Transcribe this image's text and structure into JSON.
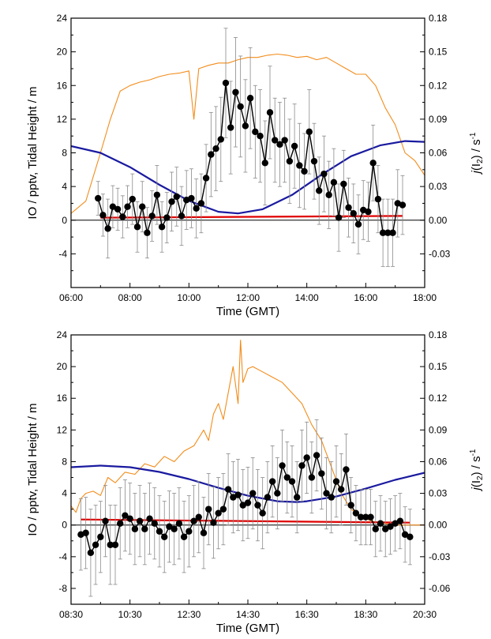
{
  "chart_data": [
    {
      "type": "line",
      "xlabel": "Time (GMT)",
      "ylabel": "IO / pptv, Tidal Height / m",
      "y2label": "j(I2) / s-1",
      "y2label_parts": {
        "italic": "j",
        "open": "(I",
        "sub": "2",
        "close": ") / s",
        "sup": "-1"
      },
      "xlim": [
        "06:00",
        "18:00"
      ],
      "ylim": [
        -8,
        24
      ],
      "y2lim": [
        -0.06,
        0.18
      ],
      "x_ticks": [
        "06:00",
        "08:00",
        "10:00",
        "12:00",
        "14:00",
        "16:00",
        "18:00"
      ],
      "y_ticks": [
        "-4",
        "0",
        "4",
        "8",
        "12",
        "16",
        "20",
        "24"
      ],
      "y2_ticks": [
        "-0.03",
        "0.00",
        "0.03",
        "0.06",
        "0.09",
        "0.12",
        "0.15",
        "0.18"
      ],
      "colors": {
        "io": "#000000",
        "tide": "#1a1aa0",
        "j": "#f28c1a",
        "io_detection": "#e00000",
        "zero": "#000000"
      },
      "series": [
        {
          "key": "io",
          "axis": "left",
          "style": "markers+line+errorbars",
          "x": [
            "06:55",
            "07:05",
            "07:15",
            "07:25",
            "07:35",
            "07:45",
            "07:55",
            "08:05",
            "08:15",
            "08:25",
            "08:35",
            "08:45",
            "08:55",
            "09:05",
            "09:15",
            "09:25",
            "09:35",
            "09:45",
            "09:55",
            "10:05",
            "10:15",
            "10:25",
            "10:35",
            "10:45",
            "10:55",
            "11:05",
            "11:15",
            "11:25",
            "11:35",
            "11:45",
            "11:55",
            "12:05",
            "12:15",
            "12:25",
            "12:35",
            "12:45",
            "12:55",
            "13:05",
            "13:15",
            "13:25",
            "13:35",
            "13:45",
            "13:55",
            "14:05",
            "14:15",
            "14:25",
            "14:35",
            "14:45",
            "14:55",
            "15:05",
            "15:15",
            "15:25",
            "15:35",
            "15:45",
            "15:55",
            "16:05",
            "16:15",
            "16:25",
            "16:35",
            "16:45",
            "16:55",
            "17:05",
            "17:15"
          ],
          "y": [
            2.6,
            0.6,
            -1.0,
            1.6,
            1.3,
            0.4,
            1.6,
            2.5,
            -0.8,
            1.6,
            -1.5,
            0.5,
            3.0,
            -0.8,
            0.3,
            2.2,
            2.8,
            0.5,
            2.4,
            2.6,
            1.4,
            2.0,
            5.0,
            7.8,
            8.5,
            9.6,
            16.3,
            11.0,
            15.2,
            13.5,
            11.2,
            14.5,
            10.5,
            10.0,
            6.8,
            12.8,
            9.5,
            9.0,
            9.5,
            7.0,
            8.8,
            6.5,
            5.8,
            10.5,
            7.0,
            3.5,
            5.5,
            3.0,
            4.5,
            0.3,
            4.3,
            1.5,
            0.8,
            -0.5,
            1.2,
            1.0,
            6.8,
            2.5,
            -1.5,
            -1.5,
            -1.5,
            2.0,
            1.8
          ],
          "err": [
            2.0,
            2.5,
            3.5,
            2.5,
            2.5,
            2.5,
            2.5,
            3.0,
            3.0,
            3.0,
            3.0,
            3.0,
            3.5,
            3.0,
            3.0,
            3.5,
            3.5,
            3.5,
            3.5,
            3.5,
            3.5,
            3.5,
            4.0,
            5.0,
            5.0,
            5.0,
            6.5,
            5.5,
            6.5,
            6.0,
            5.5,
            6.0,
            5.5,
            5.5,
            5.0,
            5.5,
            5.0,
            5.0,
            5.0,
            5.0,
            5.0,
            5.0,
            4.5,
            5.0,
            4.5,
            4.0,
            4.5,
            4.0,
            4.0,
            4.0,
            4.0,
            3.5,
            3.5,
            3.5,
            3.5,
            3.5,
            4.5,
            4.0,
            4.0,
            4.0,
            4.0,
            4.0,
            3.5
          ]
        },
        {
          "key": "tide",
          "axis": "left",
          "style": "line",
          "x": [
            "06:00",
            "07:00",
            "08:00",
            "09:00",
            "10:00",
            "11:00",
            "11:40",
            "12:30",
            "13:30",
            "14:30",
            "15:30",
            "16:30",
            "17:20",
            "18:00"
          ],
          "y": [
            8.8,
            8.0,
            6.3,
            4.2,
            2.3,
            1.0,
            0.8,
            1.3,
            3.0,
            5.4,
            7.6,
            8.9,
            9.4,
            9.3
          ]
        },
        {
          "key": "j",
          "axis": "right",
          "style": "line",
          "x": [
            "06:00",
            "06:30",
            "07:00",
            "07:20",
            "07:40",
            "08:00",
            "08:20",
            "08:40",
            "09:00",
            "09:20",
            "09:40",
            "10:00",
            "10:10",
            "10:20",
            "10:40",
            "11:00",
            "11:20",
            "11:40",
            "12:00",
            "12:20",
            "12:40",
            "13:00",
            "13:20",
            "13:40",
            "14:00",
            "14:20",
            "14:40",
            "15:00",
            "15:20",
            "15:40",
            "16:00",
            "16:20",
            "16:40",
            "17:00",
            "17:20",
            "17:40",
            "18:00"
          ],
          "y": [
            0.006,
            0.017,
            0.06,
            0.09,
            0.115,
            0.12,
            0.123,
            0.125,
            0.128,
            0.13,
            0.131,
            0.133,
            0.09,
            0.135,
            0.138,
            0.14,
            0.14,
            0.143,
            0.145,
            0.145,
            0.147,
            0.148,
            0.147,
            0.145,
            0.146,
            0.143,
            0.145,
            0.14,
            0.135,
            0.13,
            0.13,
            0.12,
            0.1,
            0.085,
            0.06,
            0.053,
            0.04
          ]
        },
        {
          "key": "io_detection",
          "axis": "left",
          "style": "line",
          "x": [
            "07:00",
            "17:15"
          ],
          "y": [
            0.3,
            0.5
          ]
        }
      ]
    },
    {
      "type": "line",
      "xlabel": "Time (GMT)",
      "ylabel": "IO / pptv, Tidal Height / m",
      "y2label": "j(I2) / s-1",
      "y2label_parts": {
        "italic": "j",
        "open": "(I",
        "sub": "2",
        "close": ") / s",
        "sup": "-1"
      },
      "xlim": [
        "08:30",
        "20:30"
      ],
      "ylim": [
        -10,
        24
      ],
      "y2lim": [
        -0.075,
        0.18
      ],
      "x_ticks": [
        "08:30",
        "10:30",
        "12:30",
        "14:30",
        "16:30",
        "18:30",
        "20:30"
      ],
      "y_ticks": [
        "-8",
        "-4",
        "0",
        "4",
        "8",
        "12",
        "16",
        "20",
        "24"
      ],
      "y2_ticks": [
        "-0.06",
        "-0.03",
        "0.00",
        "0.03",
        "0.06",
        "0.09",
        "0.12",
        "0.15",
        "0.18"
      ],
      "colors": {
        "io": "#000000",
        "tide": "#1a1aa0",
        "j": "#f28c1a",
        "io_detection": "#e00000",
        "zero": "#000000"
      },
      "series": [
        {
          "key": "io",
          "axis": "left",
          "style": "markers+line+errorbars",
          "x": [
            "08:50",
            "09:00",
            "09:10",
            "09:20",
            "09:30",
            "09:40",
            "09:50",
            "10:00",
            "10:10",
            "10:20",
            "10:30",
            "10:40",
            "10:50",
            "11:00",
            "11:10",
            "11:20",
            "11:30",
            "11:40",
            "11:50",
            "12:00",
            "12:10",
            "12:20",
            "12:30",
            "12:40",
            "12:50",
            "13:00",
            "13:10",
            "13:20",
            "13:30",
            "13:40",
            "13:50",
            "14:00",
            "14:10",
            "14:20",
            "14:30",
            "14:40",
            "14:50",
            "15:00",
            "15:10",
            "15:20",
            "15:30",
            "15:40",
            "15:50",
            "16:00",
            "16:10",
            "16:20",
            "16:30",
            "16:40",
            "16:50",
            "17:00",
            "17:10",
            "17:20",
            "17:30",
            "17:40",
            "17:50",
            "18:00",
            "18:10",
            "18:20",
            "18:30",
            "18:40",
            "18:50",
            "19:00",
            "19:10",
            "19:20",
            "19:30",
            "19:40",
            "19:50",
            "20:00"
          ],
          "y": [
            -1.2,
            -1.0,
            -3.5,
            -2.5,
            -1.5,
            0.5,
            -2.5,
            -2.5,
            0.2,
            1.2,
            0.8,
            -0.5,
            0.5,
            -0.5,
            0.8,
            0.2,
            -0.8,
            -1.5,
            -0.2,
            -0.5,
            0.2,
            -1.5,
            -0.8,
            0.5,
            1.0,
            -1.0,
            2.0,
            0.3,
            1.5,
            2.0,
            4.5,
            3.5,
            3.8,
            2.5,
            2.8,
            4.0,
            2.5,
            1.5,
            3.5,
            5.5,
            4.0,
            7.5,
            6.0,
            5.5,
            3.5,
            7.5,
            8.5,
            6.0,
            8.8,
            6.5,
            4.0,
            3.5,
            5.5,
            4.5,
            7.0,
            2.5,
            1.5,
            1.0,
            1.0,
            1.0,
            -0.5,
            0.2,
            -0.5,
            -0.2,
            0.2,
            0.5,
            -1.2,
            -1.5
          ],
          "err": [
            4.5,
            4.5,
            5.5,
            5.0,
            4.5,
            4.5,
            5.0,
            5.0,
            4.5,
            4.5,
            4.5,
            4.5,
            4.5,
            4.5,
            4.5,
            4.5,
            4.5,
            4.5,
            4.5,
            4.5,
            4.5,
            4.5,
            4.5,
            4.5,
            4.5,
            4.5,
            4.5,
            4.5,
            4.5,
            4.5,
            4.5,
            4.5,
            4.5,
            4.5,
            4.5,
            4.5,
            4.5,
            4.5,
            4.5,
            4.5,
            4.5,
            4.5,
            4.5,
            4.5,
            4.5,
            4.5,
            4.5,
            4.5,
            4.5,
            4.5,
            4.5,
            4.5,
            4.5,
            4.5,
            4.5,
            3.5,
            3.5,
            3.5,
            3.5,
            3.5,
            3.5,
            3.5,
            3.5,
            3.5,
            3.5,
            3.5,
            3.5,
            3.5
          ]
        },
        {
          "key": "tide",
          "axis": "left",
          "style": "line",
          "x": [
            "08:30",
            "09:30",
            "10:30",
            "11:30",
            "12:30",
            "13:30",
            "14:30",
            "15:30",
            "16:10",
            "16:30",
            "17:30",
            "18:30",
            "19:30",
            "20:30"
          ],
          "y": [
            7.3,
            7.5,
            7.3,
            6.7,
            5.8,
            4.7,
            3.7,
            3.0,
            2.9,
            3.0,
            3.6,
            4.6,
            5.7,
            6.6
          ]
        },
        {
          "key": "j",
          "axis": "right",
          "style": "line",
          "x": [
            "08:30",
            "08:40",
            "08:50",
            "09:00",
            "09:15",
            "09:30",
            "09:45",
            "10:00",
            "10:20",
            "10:40",
            "11:00",
            "11:20",
            "11:40",
            "12:00",
            "12:20",
            "12:40",
            "13:00",
            "13:10",
            "13:20",
            "13:30",
            "13:40",
            "13:50",
            "14:00",
            "14:10",
            "14:15",
            "14:20",
            "14:30",
            "14:40",
            "15:00",
            "15:20",
            "15:40",
            "16:00",
            "16:20",
            "16:40",
            "17:00",
            "17:20",
            "17:40",
            "18:00",
            "18:20",
            "18:40",
            "19:00",
            "19:30",
            "20:00",
            "20:30"
          ],
          "y": [
            0.018,
            0.012,
            0.025,
            0.03,
            0.032,
            0.028,
            0.045,
            0.04,
            0.05,
            0.048,
            0.058,
            0.055,
            0.065,
            0.06,
            0.07,
            0.075,
            0.09,
            0.08,
            0.105,
            0.115,
            0.1,
            0.125,
            0.15,
            0.115,
            0.175,
            0.135,
            0.148,
            0.15,
            0.145,
            0.14,
            0.135,
            0.125,
            0.115,
            0.095,
            0.08,
            0.055,
            0.03,
            0.015,
            0.008,
            0.004,
            0.002,
            0.0,
            0.0,
            0.0
          ]
        },
        {
          "key": "io_detection",
          "axis": "left",
          "style": "line",
          "x": [
            "08:50",
            "20:00"
          ],
          "y": [
            0.7,
            0.3
          ]
        }
      ]
    }
  ]
}
